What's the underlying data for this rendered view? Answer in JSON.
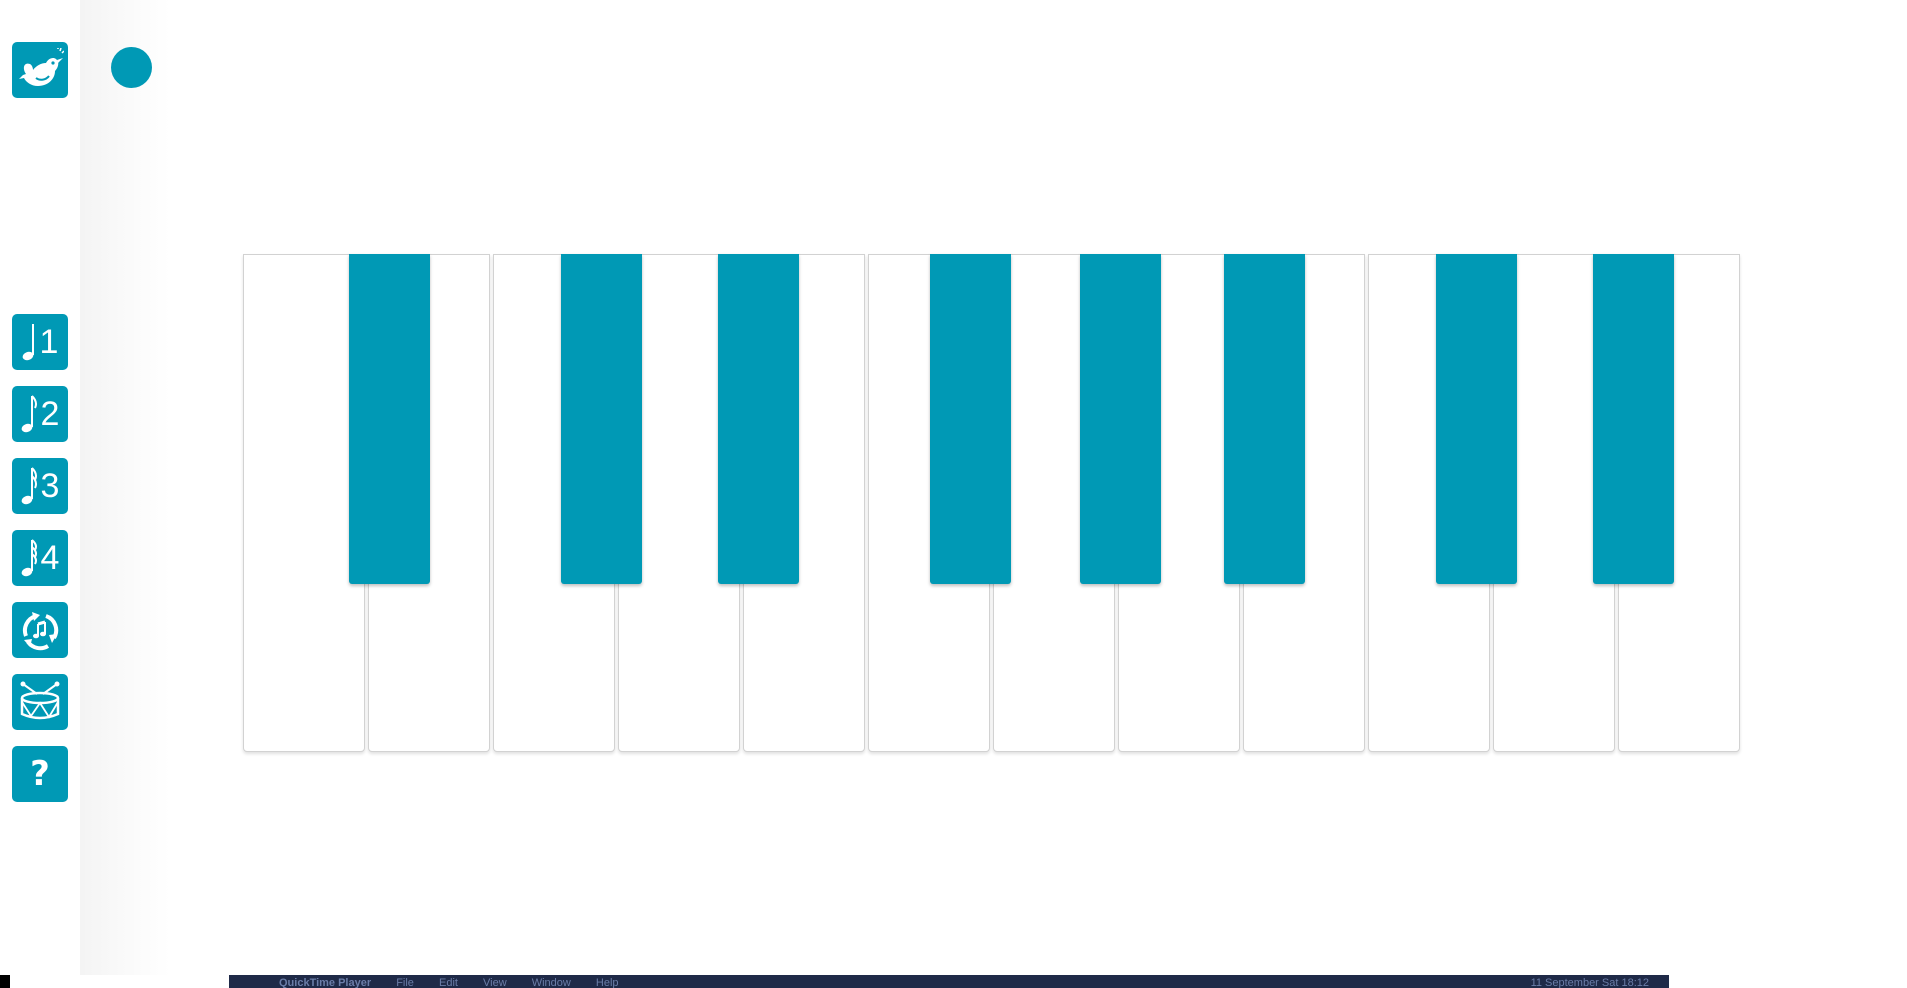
{
  "toolbar": {
    "logo_icon": "bird-logo-icon",
    "buttons": [
      {
        "id": "one",
        "label": "1",
        "icon": "quarter-note-icon"
      },
      {
        "id": "two",
        "label": "2",
        "icon": "eighth-note-icon"
      },
      {
        "id": "three",
        "label": "3",
        "icon": "sixteenth-note-icon"
      },
      {
        "id": "four",
        "label": "4",
        "icon": "thirtysecond-note-icon"
      },
      {
        "id": "loop",
        "icon": "loop-notes-icon"
      },
      {
        "id": "drum",
        "icon": "drum-icon"
      },
      {
        "id": "help",
        "label": "?",
        "icon": "help-icon"
      }
    ]
  },
  "record": {
    "icon": "record-icon"
  },
  "keyboard": {
    "white_key_count": 12,
    "black_key_count": 8
  },
  "colors": {
    "accent": "#0099b5",
    "key_border": "#d2d2d2",
    "background": "#ffffff",
    "menubar": "#1f2a48"
  },
  "menubar": {
    "app_name": "QuickTime Player",
    "items": [
      "File",
      "Edit",
      "View",
      "Window",
      "Help"
    ],
    "clock": "11 September Sat 18:12"
  }
}
